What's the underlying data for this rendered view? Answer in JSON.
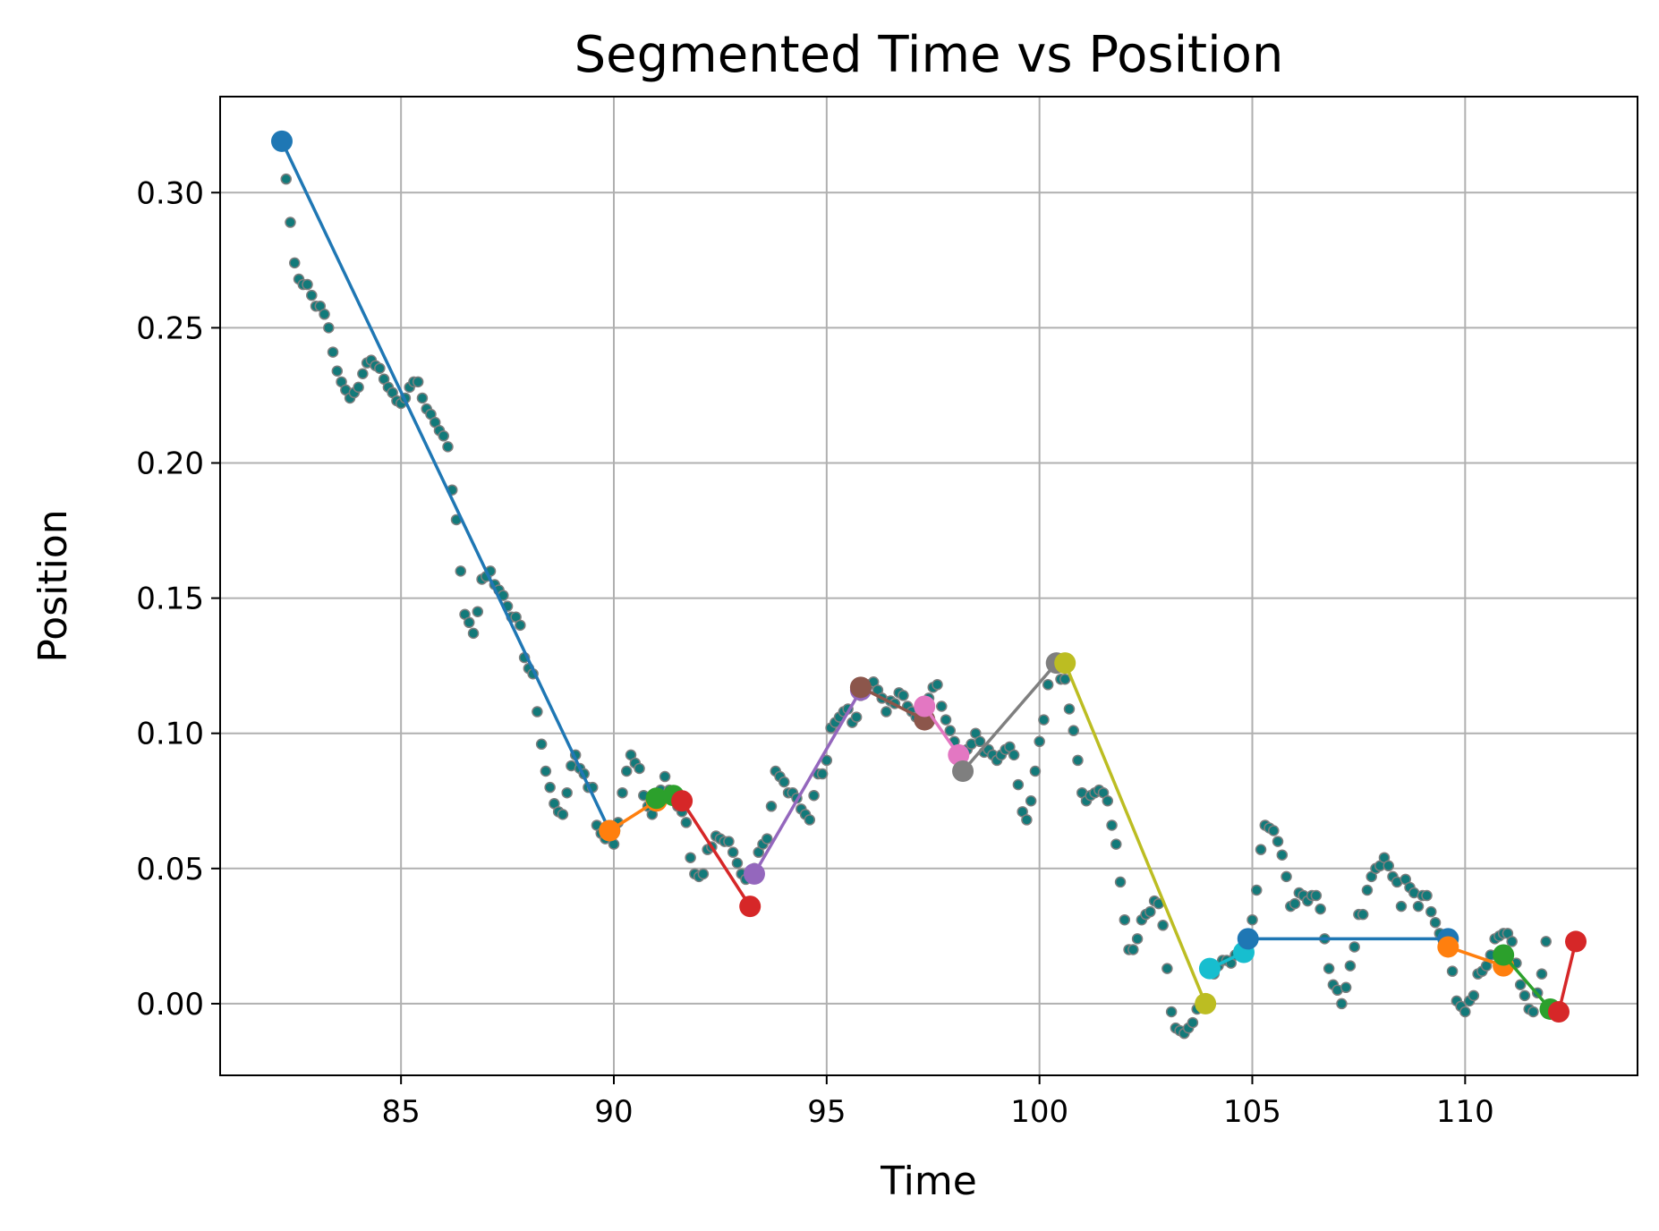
{
  "chart_data": {
    "type": "scatter",
    "title": "Segmented Time vs Position",
    "xlabel": "Time",
    "ylabel": "Position",
    "xlim": [
      80.75,
      114.05
    ],
    "ylim": [
      -0.0265,
      0.3355
    ],
    "grid": true,
    "x_ticks": [
      85,
      90,
      95,
      100,
      105,
      110
    ],
    "y_ticks": [
      0.0,
      0.05,
      0.1,
      0.15,
      0.2,
      0.25,
      0.3
    ],
    "x_tick_labels": [
      "85",
      "90",
      "95",
      "100",
      "105",
      "110"
    ],
    "y_tick_labels": [
      "0.00",
      "0.05",
      "0.10",
      "0.15",
      "0.20",
      "0.25",
      "0.30"
    ],
    "scatter_color": "#127a7a",
    "scatter_edge_color": "#7f7f7f",
    "points": [
      [
        82.2,
        0.319
      ],
      [
        82.3,
        0.305
      ],
      [
        82.4,
        0.289
      ],
      [
        82.5,
        0.274
      ],
      [
        82.6,
        0.268
      ],
      [
        82.7,
        0.266
      ],
      [
        82.8,
        0.266
      ],
      [
        82.9,
        0.262
      ],
      [
        83.0,
        0.258
      ],
      [
        83.1,
        0.258
      ],
      [
        83.2,
        0.255
      ],
      [
        83.3,
        0.25
      ],
      [
        83.4,
        0.241
      ],
      [
        83.5,
        0.234
      ],
      [
        83.6,
        0.23
      ],
      [
        83.7,
        0.227
      ],
      [
        83.8,
        0.224
      ],
      [
        83.9,
        0.226
      ],
      [
        84.0,
        0.228
      ],
      [
        84.1,
        0.233
      ],
      [
        84.2,
        0.237
      ],
      [
        84.3,
        0.238
      ],
      [
        84.4,
        0.236
      ],
      [
        84.5,
        0.235
      ],
      [
        84.6,
        0.231
      ],
      [
        84.7,
        0.228
      ],
      [
        84.8,
        0.226
      ],
      [
        84.9,
        0.223
      ],
      [
        85.0,
        0.222
      ],
      [
        85.1,
        0.224
      ],
      [
        85.2,
        0.228
      ],
      [
        85.3,
        0.23
      ],
      [
        85.4,
        0.23
      ],
      [
        85.5,
        0.224
      ],
      [
        85.6,
        0.22
      ],
      [
        85.7,
        0.218
      ],
      [
        85.8,
        0.215
      ],
      [
        85.9,
        0.212
      ],
      [
        86.0,
        0.21
      ],
      [
        86.1,
        0.206
      ],
      [
        86.2,
        0.19
      ],
      [
        86.3,
        0.179
      ],
      [
        86.4,
        0.16
      ],
      [
        86.5,
        0.144
      ],
      [
        86.6,
        0.141
      ],
      [
        86.7,
        0.137
      ],
      [
        86.8,
        0.145
      ],
      [
        86.9,
        0.157
      ],
      [
        87.0,
        0.158
      ],
      [
        87.1,
        0.16
      ],
      [
        87.2,
        0.155
      ],
      [
        87.3,
        0.153
      ],
      [
        87.4,
        0.151
      ],
      [
        87.5,
        0.147
      ],
      [
        87.6,
        0.143
      ],
      [
        87.7,
        0.143
      ],
      [
        87.8,
        0.14
      ],
      [
        87.9,
        0.128
      ],
      [
        88.0,
        0.124
      ],
      [
        88.1,
        0.122
      ],
      [
        88.2,
        0.108
      ],
      [
        88.3,
        0.096
      ],
      [
        88.4,
        0.086
      ],
      [
        88.5,
        0.08
      ],
      [
        88.6,
        0.074
      ],
      [
        88.7,
        0.071
      ],
      [
        88.8,
        0.07
      ],
      [
        88.9,
        0.078
      ],
      [
        89.0,
        0.088
      ],
      [
        89.1,
        0.092
      ],
      [
        89.2,
        0.087
      ],
      [
        89.3,
        0.085
      ],
      [
        89.4,
        0.08
      ],
      [
        89.5,
        0.08
      ],
      [
        89.6,
        0.066
      ],
      [
        89.7,
        0.063
      ],
      [
        89.8,
        0.061
      ],
      [
        89.9,
        0.062
      ],
      [
        90.0,
        0.059
      ],
      [
        90.1,
        0.067
      ],
      [
        90.2,
        0.078
      ],
      [
        90.3,
        0.086
      ],
      [
        90.4,
        0.092
      ],
      [
        90.5,
        0.089
      ],
      [
        90.6,
        0.087
      ],
      [
        90.7,
        0.077
      ],
      [
        90.8,
        0.073
      ],
      [
        90.9,
        0.07
      ],
      [
        91.0,
        0.075
      ],
      [
        91.1,
        0.079
      ],
      [
        91.2,
        0.084
      ],
      [
        91.3,
        0.079
      ],
      [
        91.4,
        0.077
      ],
      [
        91.5,
        0.073
      ],
      [
        91.6,
        0.071
      ],
      [
        91.7,
        0.067
      ],
      [
        91.8,
        0.054
      ],
      [
        91.9,
        0.048
      ],
      [
        92.0,
        0.047
      ],
      [
        92.1,
        0.048
      ],
      [
        92.2,
        0.057
      ],
      [
        92.3,
        0.058
      ],
      [
        92.4,
        0.062
      ],
      [
        92.5,
        0.061
      ],
      [
        92.6,
        0.06
      ],
      [
        92.7,
        0.06
      ],
      [
        92.8,
        0.056
      ],
      [
        92.9,
        0.052
      ],
      [
        93.0,
        0.048
      ],
      [
        93.1,
        0.046
      ],
      [
        93.2,
        0.049
      ],
      [
        93.3,
        0.05
      ],
      [
        93.4,
        0.056
      ],
      [
        93.5,
        0.059
      ],
      [
        93.6,
        0.061
      ],
      [
        93.7,
        0.073
      ],
      [
        93.8,
        0.086
      ],
      [
        93.9,
        0.084
      ],
      [
        94.0,
        0.082
      ],
      [
        94.1,
        0.078
      ],
      [
        94.2,
        0.078
      ],
      [
        94.3,
        0.076
      ],
      [
        94.4,
        0.072
      ],
      [
        94.5,
        0.07
      ],
      [
        94.6,
        0.068
      ],
      [
        94.7,
        0.077
      ],
      [
        94.8,
        0.085
      ],
      [
        94.9,
        0.085
      ],
      [
        95.0,
        0.09
      ],
      [
        95.1,
        0.102
      ],
      [
        95.2,
        0.104
      ],
      [
        95.3,
        0.106
      ],
      [
        95.4,
        0.108
      ],
      [
        95.5,
        0.109
      ],
      [
        95.6,
        0.104
      ],
      [
        95.7,
        0.106
      ],
      [
        95.8,
        0.114
      ],
      [
        95.9,
        0.116
      ],
      [
        96.0,
        0.118
      ],
      [
        96.1,
        0.119
      ],
      [
        96.2,
        0.116
      ],
      [
        96.3,
        0.113
      ],
      [
        96.4,
        0.108
      ],
      [
        96.5,
        0.112
      ],
      [
        96.6,
        0.111
      ],
      [
        96.7,
        0.115
      ],
      [
        96.8,
        0.114
      ],
      [
        96.9,
        0.11
      ],
      [
        97.0,
        0.108
      ],
      [
        97.1,
        0.106
      ],
      [
        97.2,
        0.107
      ],
      [
        97.3,
        0.109
      ],
      [
        97.4,
        0.113
      ],
      [
        97.5,
        0.117
      ],
      [
        97.6,
        0.118
      ],
      [
        97.7,
        0.11
      ],
      [
        97.8,
        0.105
      ],
      [
        97.9,
        0.101
      ],
      [
        98.0,
        0.097
      ],
      [
        98.1,
        0.092
      ],
      [
        98.2,
        0.086
      ],
      [
        98.3,
        0.094
      ],
      [
        98.4,
        0.096
      ],
      [
        98.5,
        0.1
      ],
      [
        98.6,
        0.097
      ],
      [
        98.7,
        0.093
      ],
      [
        98.8,
        0.094
      ],
      [
        98.9,
        0.092
      ],
      [
        99.0,
        0.09
      ],
      [
        99.1,
        0.092
      ],
      [
        99.2,
        0.094
      ],
      [
        99.3,
        0.095
      ],
      [
        99.4,
        0.092
      ],
      [
        99.5,
        0.081
      ],
      [
        99.6,
        0.071
      ],
      [
        99.7,
        0.068
      ],
      [
        99.8,
        0.075
      ],
      [
        99.9,
        0.086
      ],
      [
        100.0,
        0.097
      ],
      [
        100.1,
        0.105
      ],
      [
        100.2,
        0.118
      ],
      [
        100.3,
        0.127
      ],
      [
        100.4,
        0.125
      ],
      [
        100.5,
        0.12
      ],
      [
        100.6,
        0.12
      ],
      [
        100.7,
        0.109
      ],
      [
        100.8,
        0.101
      ],
      [
        100.9,
        0.09
      ],
      [
        101.0,
        0.078
      ],
      [
        101.1,
        0.075
      ],
      [
        101.2,
        0.077
      ],
      [
        101.3,
        0.078
      ],
      [
        101.4,
        0.079
      ],
      [
        101.5,
        0.078
      ],
      [
        101.6,
        0.075
      ],
      [
        101.7,
        0.066
      ],
      [
        101.8,
        0.059
      ],
      [
        101.9,
        0.045
      ],
      [
        102.0,
        0.031
      ],
      [
        102.1,
        0.02
      ],
      [
        102.2,
        0.02
      ],
      [
        102.3,
        0.024
      ],
      [
        102.4,
        0.031
      ],
      [
        102.5,
        0.033
      ],
      [
        102.6,
        0.034
      ],
      [
        102.7,
        0.038
      ],
      [
        102.8,
        0.037
      ],
      [
        102.9,
        0.029
      ],
      [
        103.0,
        0.013
      ],
      [
        103.1,
        -0.003
      ],
      [
        103.2,
        -0.009
      ],
      [
        103.3,
        -0.01
      ],
      [
        103.4,
        -0.011
      ],
      [
        103.5,
        -0.009
      ],
      [
        103.6,
        -0.007
      ],
      [
        103.7,
        -0.002
      ],
      [
        103.8,
        0.0
      ],
      [
        103.9,
        0.013
      ],
      [
        104.0,
        0.013
      ],
      [
        104.1,
        0.011
      ],
      [
        104.2,
        0.014
      ],
      [
        104.3,
        0.016
      ],
      [
        104.4,
        0.016
      ],
      [
        104.5,
        0.015
      ],
      [
        104.6,
        0.018
      ],
      [
        104.7,
        0.019
      ],
      [
        104.8,
        0.023
      ],
      [
        104.9,
        0.025
      ],
      [
        105.0,
        0.031
      ],
      [
        105.1,
        0.042
      ],
      [
        105.2,
        0.057
      ],
      [
        105.3,
        0.066
      ],
      [
        105.4,
        0.065
      ],
      [
        105.5,
        0.064
      ],
      [
        105.6,
        0.06
      ],
      [
        105.7,
        0.055
      ],
      [
        105.8,
        0.047
      ],
      [
        105.9,
        0.036
      ],
      [
        106.0,
        0.037
      ],
      [
        106.1,
        0.041
      ],
      [
        106.2,
        0.04
      ],
      [
        106.3,
        0.038
      ],
      [
        106.4,
        0.04
      ],
      [
        106.5,
        0.04
      ],
      [
        106.6,
        0.035
      ],
      [
        106.7,
        0.024
      ],
      [
        106.8,
        0.013
      ],
      [
        106.9,
        0.007
      ],
      [
        107.0,
        0.005
      ],
      [
        107.1,
        0.0
      ],
      [
        107.2,
        0.006
      ],
      [
        107.3,
        0.014
      ],
      [
        107.4,
        0.021
      ],
      [
        107.5,
        0.033
      ],
      [
        107.6,
        0.033
      ],
      [
        107.7,
        0.042
      ],
      [
        107.8,
        0.047
      ],
      [
        107.9,
        0.05
      ],
      [
        108.0,
        0.051
      ],
      [
        108.1,
        0.054
      ],
      [
        108.2,
        0.051
      ],
      [
        108.3,
        0.047
      ],
      [
        108.4,
        0.045
      ],
      [
        108.5,
        0.036
      ],
      [
        108.6,
        0.046
      ],
      [
        108.7,
        0.043
      ],
      [
        108.8,
        0.041
      ],
      [
        108.9,
        0.036
      ],
      [
        109.0,
        0.04
      ],
      [
        109.1,
        0.04
      ],
      [
        109.2,
        0.034
      ],
      [
        109.3,
        0.03
      ],
      [
        109.4,
        0.026
      ],
      [
        109.5,
        0.024
      ],
      [
        109.6,
        0.022
      ],
      [
        109.7,
        0.012
      ],
      [
        109.8,
        0.001
      ],
      [
        109.9,
        -0.001
      ],
      [
        110.0,
        -0.003
      ],
      [
        110.1,
        0.001
      ],
      [
        110.2,
        0.003
      ],
      [
        110.3,
        0.011
      ],
      [
        110.4,
        0.012
      ],
      [
        110.5,
        0.014
      ],
      [
        110.6,
        0.018
      ],
      [
        110.7,
        0.024
      ],
      [
        110.8,
        0.025
      ],
      [
        110.9,
        0.026
      ],
      [
        111.0,
        0.026
      ],
      [
        111.1,
        0.023
      ],
      [
        111.2,
        0.015
      ],
      [
        111.3,
        0.007
      ],
      [
        111.4,
        0.003
      ],
      [
        111.5,
        -0.002
      ],
      [
        111.6,
        -0.003
      ],
      [
        111.7,
        0.004
      ],
      [
        111.8,
        0.011
      ],
      [
        111.9,
        0.023
      ]
    ],
    "segments": [
      {
        "color": "#1f77b4",
        "x": [
          82.2,
          89.9
        ],
        "y": [
          0.319,
          0.064
        ]
      },
      {
        "color": "#ff7f0e",
        "x": [
          89.9,
          91.0
        ],
        "y": [
          0.064,
          0.075
        ]
      },
      {
        "color": "#2ca02c",
        "x": [
          91.0,
          91.4
        ],
        "y": [
          0.076,
          0.077
        ]
      },
      {
        "color": "#d62728",
        "x": [
          91.6,
          93.2
        ],
        "y": [
          0.075,
          0.036
        ]
      },
      {
        "color": "#9467bd",
        "x": [
          93.3,
          95.8
        ],
        "y": [
          0.048,
          0.116
        ]
      },
      {
        "color": "#8c564b",
        "x": [
          95.8,
          97.3
        ],
        "y": [
          0.117,
          0.105
        ]
      },
      {
        "color": "#e377c2",
        "x": [
          97.3,
          98.1
        ],
        "y": [
          0.11,
          0.092
        ]
      },
      {
        "color": "#7f7f7f",
        "x": [
          98.2,
          100.4
        ],
        "y": [
          0.086,
          0.126
        ]
      },
      {
        "color": "#bcbd22",
        "x": [
          100.6,
          103.9
        ],
        "y": [
          0.126,
          0.0
        ]
      },
      {
        "color": "#17becf",
        "x": [
          104.0,
          104.8
        ],
        "y": [
          0.013,
          0.019
        ]
      },
      {
        "color": "#1f77b4",
        "x": [
          104.9,
          109.6
        ],
        "y": [
          0.024,
          0.024
        ]
      },
      {
        "color": "#ff7f0e",
        "x": [
          109.6,
          110.9
        ],
        "y": [
          0.021,
          0.014
        ]
      },
      {
        "color": "#2ca02c",
        "x": [
          110.9,
          112.0
        ],
        "y": [
          0.018,
          -0.002
        ]
      },
      {
        "color": "#d62728",
        "x": [
          112.2,
          112.6
        ],
        "y": [
          -0.003,
          0.023
        ]
      }
    ]
  }
}
